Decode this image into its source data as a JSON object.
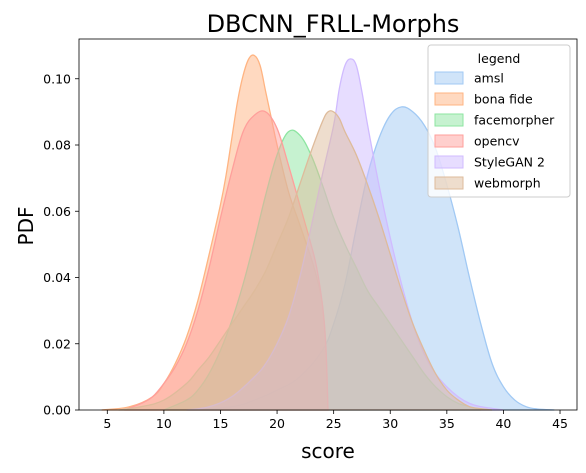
{
  "chart_data": {
    "type": "area",
    "title": "DBCNN_FRLL-Morphs",
    "xlabel": "score",
    "ylabel": "PDF",
    "xlim": [
      2.5,
      46.5
    ],
    "ylim": [
      0,
      0.112
    ],
    "xticks": [
      5,
      10,
      15,
      20,
      25,
      30,
      35,
      40,
      45
    ],
    "yticks": [
      0.0,
      0.02,
      0.04,
      0.06,
      0.08,
      0.1
    ],
    "ytick_labels": [
      "0.00",
      "0.02",
      "0.04",
      "0.06",
      "0.08",
      "0.10"
    ],
    "grid": false,
    "legend": {
      "title": "legend",
      "placement": "top-right"
    },
    "series": [
      {
        "name": "amsl",
        "color": "#a1c9f4",
        "x": [
          12,
          16,
          18,
          20,
          22,
          24,
          25,
          26,
          27,
          28,
          29,
          30,
          31,
          32,
          33,
          34,
          35,
          36,
          37,
          38,
          39,
          40,
          41,
          42,
          43,
          44.5
        ],
        "y": [
          0.0,
          0.001,
          0.003,
          0.006,
          0.01,
          0.018,
          0.026,
          0.038,
          0.055,
          0.071,
          0.082,
          0.089,
          0.0915,
          0.09,
          0.086,
          0.079,
          0.068,
          0.055,
          0.04,
          0.026,
          0.014,
          0.007,
          0.003,
          0.001,
          0.0003,
          0.0
        ]
      },
      {
        "name": "bona fide",
        "color": "#ffb482",
        "x": [
          4.5,
          7,
          9,
          10,
          11,
          12,
          13,
          14,
          15,
          15.5,
          16,
          16.5,
          17,
          17.5,
          18,
          18.5,
          19,
          19.5,
          20,
          21,
          22,
          23,
          23.5,
          24,
          24.3,
          24.5
        ],
        "y": [
          0.0,
          0.001,
          0.004,
          0.008,
          0.014,
          0.022,
          0.033,
          0.047,
          0.062,
          0.071,
          0.082,
          0.093,
          0.101,
          0.106,
          0.107,
          0.104,
          0.096,
          0.088,
          0.08,
          0.066,
          0.056,
          0.046,
          0.04,
          0.032,
          0.02,
          0.0
        ]
      },
      {
        "name": "facemorpher",
        "color": "#8de5a1",
        "x": [
          10,
          12,
          13,
          14,
          15,
          16,
          17,
          18,
          19,
          20,
          21,
          22,
          23,
          24,
          25,
          26,
          27,
          28,
          29,
          30,
          31,
          32,
          33,
          34,
          35,
          36,
          37,
          38
        ],
        "y": [
          0.0,
          0.003,
          0.006,
          0.011,
          0.018,
          0.027,
          0.038,
          0.051,
          0.065,
          0.077,
          0.084,
          0.083,
          0.077,
          0.068,
          0.058,
          0.05,
          0.043,
          0.036,
          0.031,
          0.026,
          0.021,
          0.016,
          0.011,
          0.007,
          0.004,
          0.002,
          0.001,
          0.0
        ]
      },
      {
        "name": "opencv",
        "color": "#ff9f9b",
        "x": [
          6.5,
          8,
          9,
          10,
          11,
          12,
          13,
          14,
          15,
          16,
          17,
          18,
          19,
          20,
          21,
          22,
          23,
          23.5,
          24,
          24.3,
          24.5
        ],
        "y": [
          0.0,
          0.002,
          0.004,
          0.008,
          0.013,
          0.02,
          0.03,
          0.043,
          0.058,
          0.072,
          0.084,
          0.089,
          0.09,
          0.085,
          0.074,
          0.062,
          0.05,
          0.043,
          0.032,
          0.02,
          0.0
        ]
      },
      {
        "name": "StyleGAN 2",
        "color": "#d0bbff",
        "x": [
          12,
          14,
          16,
          18,
          19,
          20,
          21,
          22,
          23,
          24,
          25,
          25.5,
          26,
          26.5,
          27,
          27.5,
          28,
          29,
          30,
          31,
          32,
          33,
          34,
          35,
          36,
          37,
          38,
          39,
          40
        ],
        "y": [
          0.0,
          0.001,
          0.004,
          0.01,
          0.014,
          0.02,
          0.028,
          0.04,
          0.055,
          0.071,
          0.086,
          0.097,
          0.104,
          0.106,
          0.104,
          0.096,
          0.086,
          0.068,
          0.052,
          0.038,
          0.026,
          0.017,
          0.011,
          0.007,
          0.004,
          0.002,
          0.001,
          0.0005,
          0.0
        ]
      },
      {
        "name": "webmorph",
        "color": "#debb9b",
        "x": [
          6,
          8,
          10,
          12,
          13,
          14,
          15,
          16,
          17,
          18,
          19,
          20,
          21,
          22,
          23,
          24,
          24.5,
          25,
          25.5,
          26,
          27,
          28,
          29,
          30,
          31,
          32,
          33,
          34,
          35,
          36,
          37,
          38,
          39
        ],
        "y": [
          0.0,
          0.001,
          0.003,
          0.008,
          0.012,
          0.016,
          0.021,
          0.026,
          0.031,
          0.036,
          0.042,
          0.05,
          0.058,
          0.068,
          0.078,
          0.087,
          0.09,
          0.09,
          0.088,
          0.084,
          0.077,
          0.068,
          0.058,
          0.047,
          0.036,
          0.026,
          0.018,
          0.011,
          0.006,
          0.003,
          0.001,
          0.0004,
          0.0
        ]
      }
    ]
  }
}
